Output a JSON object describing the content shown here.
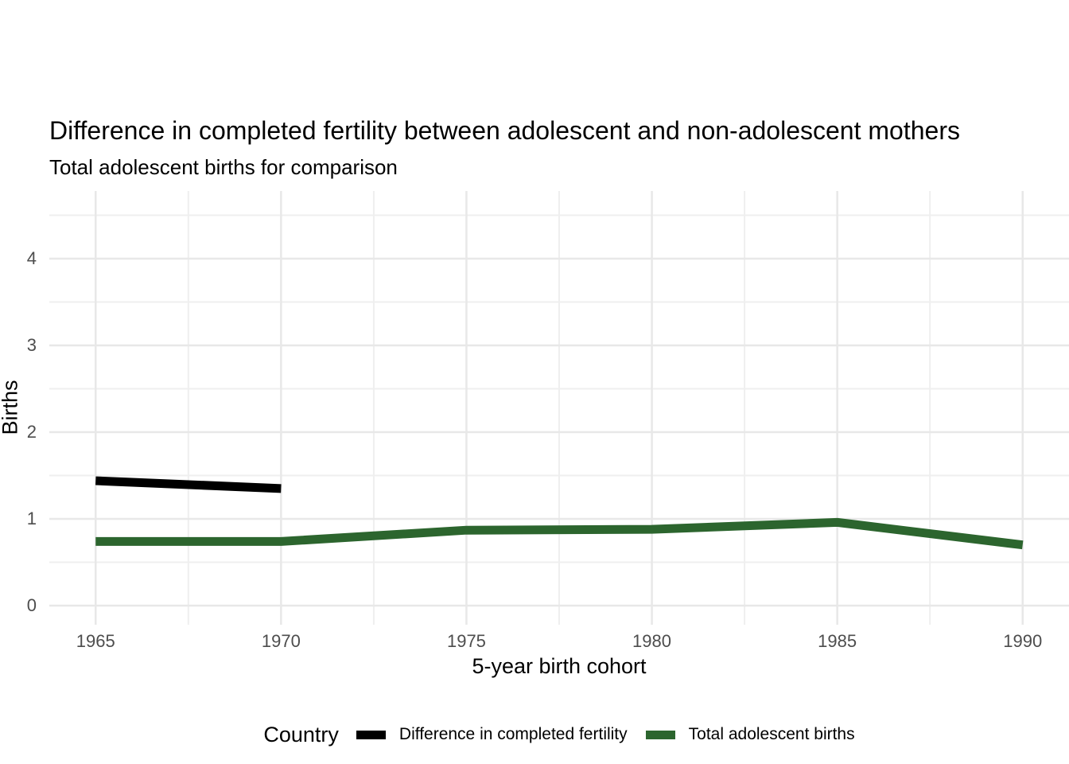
{
  "chart_data": {
    "type": "line",
    "title": "Difference in completed fertility between adolescent and non-adolescent mothers",
    "subtitle": "Total adolescent births for comparison",
    "xlabel": "5-year birth cohort",
    "ylabel": "Births",
    "legend_title": "Country",
    "legend_position": "bottom",
    "grid": true,
    "x_ticks": [
      1965,
      1970,
      1975,
      1980,
      1985,
      1990
    ],
    "y_ticks": [
      0,
      1,
      2,
      3,
      4
    ],
    "x_minor_ticks": [
      1967.5,
      1972.5,
      1977.5,
      1982.5,
      1987.5
    ],
    "y_minor_ticks": [
      0.5,
      1.5,
      2.5,
      3.5,
      4.5
    ],
    "xlim": [
      1963.75,
      1991.25
    ],
    "ylim": [
      -0.22,
      4.78
    ],
    "series": [
      {
        "name": "Difference in completed fertility",
        "color": "#000000",
        "x": [
          1965,
          1970
        ],
        "y": [
          1.44,
          1.35
        ]
      },
      {
        "name": "Total adolescent births",
        "color": "#2c652e",
        "x": [
          1965,
          1970,
          1975,
          1980,
          1985,
          1990
        ],
        "y": [
          0.74,
          0.74,
          0.87,
          0.88,
          0.96,
          0.7
        ]
      }
    ],
    "style": {
      "grid_major_color": "#E8E8E8",
      "grid_minor_color": "#EFEFEF",
      "tick_label_color": "#4D4D4D",
      "text_color": "#000000",
      "background_color": "#FFFFFF",
      "line_width": 11
    }
  }
}
